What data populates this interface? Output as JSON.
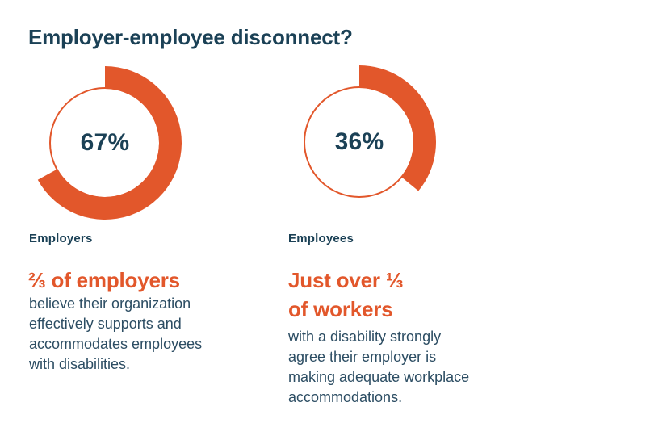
{
  "title": "Employer-employee disconnect?",
  "colors": {
    "accent_orange": "#E2572B",
    "navy_heading": "#1B4156",
    "navy_body": "#2C4D63",
    "background": "#FFFFFF"
  },
  "chart_data": [
    {
      "type": "pie",
      "subtype": "donut",
      "label": "Employers",
      "categories": [
        "shown",
        "remainder"
      ],
      "values": [
        67,
        33
      ],
      "center_label": "67%",
      "arc_color": "#E2572B",
      "start_angle": "12 o'clock",
      "direction": "clockwise",
      "legend": "none",
      "grid": "off"
    },
    {
      "type": "pie",
      "subtype": "donut",
      "label": "Employees",
      "categories": [
        "shown",
        "remainder"
      ],
      "values": [
        36,
        64
      ],
      "center_label": "36%",
      "arc_color": "#E2572B",
      "start_angle": "12 o'clock",
      "direction": "clockwise",
      "legend": "none",
      "grid": "off"
    }
  ],
  "columns": [
    {
      "headline": "⅔ of employers",
      "body": "believe their organization\neffectively supports and\naccommodates employees\nwith disabilities."
    },
    {
      "headline": "Just over ⅓\nof workers",
      "body": "with a disability strongly\nagree their employer is\nmaking adequate workplace\naccommodations."
    }
  ]
}
